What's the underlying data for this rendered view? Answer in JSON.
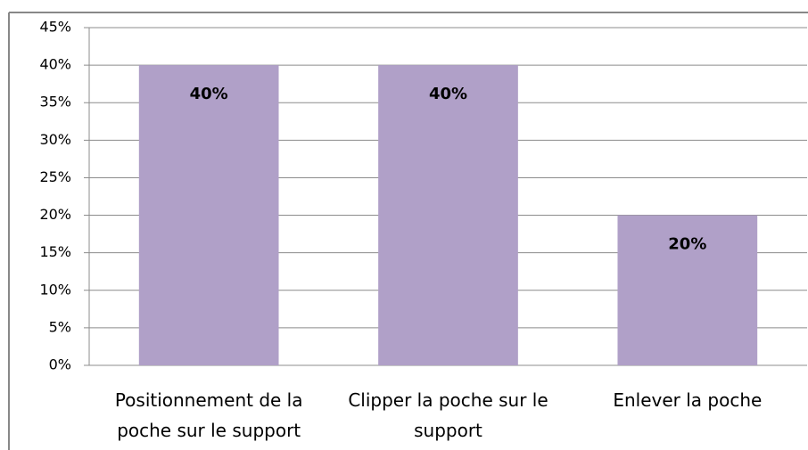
{
  "chart_data": {
    "type": "bar",
    "categories": [
      "Positionnement de la poche sur le support",
      "Clipper la poche sur le support",
      "Enlever la poche"
    ],
    "values": [
      40,
      40,
      20
    ],
    "value_labels": [
      "40%",
      "40%",
      "20%"
    ],
    "color": "#b0a0c8",
    "ylim": [
      0,
      45
    ],
    "yticks": [
      {
        "value": 0,
        "label": "0%"
      },
      {
        "value": 5,
        "label": "5%"
      },
      {
        "value": 10,
        "label": "10%"
      },
      {
        "value": 15,
        "label": "15%"
      },
      {
        "value": 20,
        "label": "20%"
      },
      {
        "value": 25,
        "label": "25%"
      },
      {
        "value": 30,
        "label": "30%"
      },
      {
        "value": 35,
        "label": "35%"
      },
      {
        "value": 40,
        "label": "40%"
      },
      {
        "value": 45,
        "label": "45%"
      }
    ],
    "grid": true
  }
}
